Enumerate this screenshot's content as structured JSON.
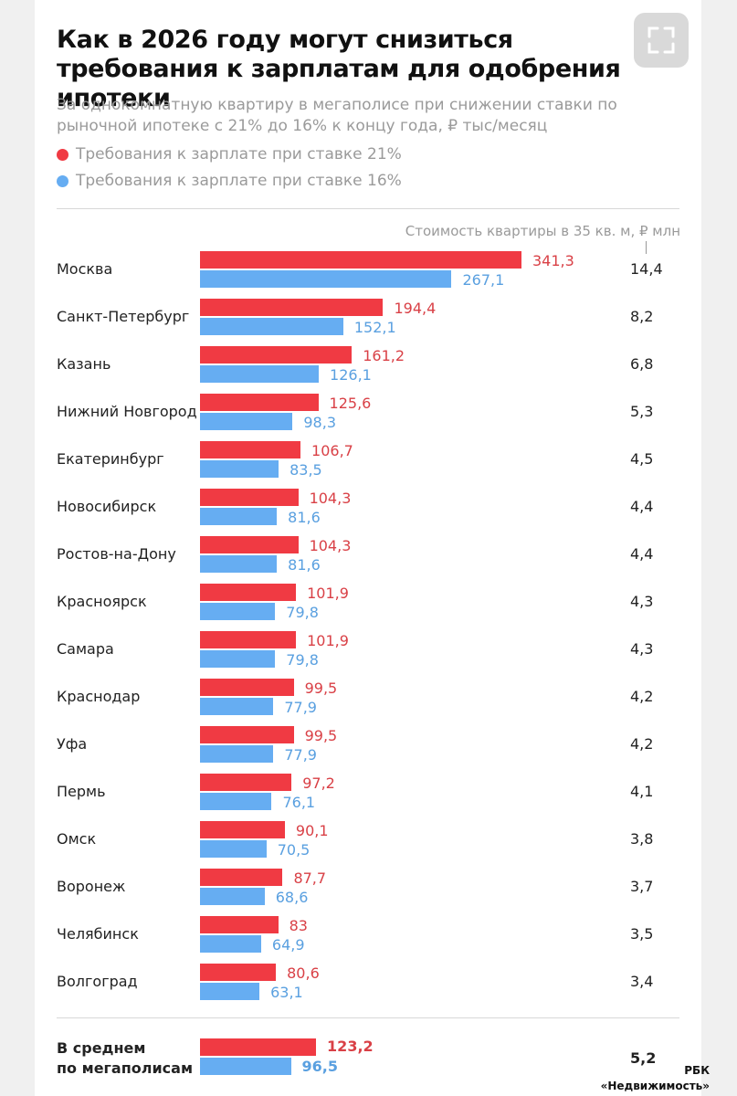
{
  "header": {
    "title": "Как в 2026 году могут снизиться требования к зарплатам для одобрения ипотеки",
    "subtitle": "За однокомнатную квартиру в мегаполисе при снижении ставки по рыночной ипотеке с 21% до 16% к концу года, ₽ тыс/месяц"
  },
  "legend": {
    "series_21": "Требования к зарплате при ставке 21%",
    "series_16": "Требования к зарплате при ставке 16%"
  },
  "colors": {
    "red": "#f03a43",
    "blue": "#66adf2",
    "red_text": "#d94046",
    "blue_text": "#5aa0e0"
  },
  "chart_data": {
    "type": "bar",
    "orientation": "horizontal",
    "categories": [
      "Москва",
      "Санкт-Петербург",
      "Казань",
      "Нижний Новгород",
      "Екатеринбург",
      "Новосибирск",
      "Ростов-на-Дону",
      "Красноярск",
      "Самара",
      "Краснодар",
      "Уфа",
      "Пермь",
      "Омск",
      "Воронеж",
      "Челябинск",
      "Волгоград"
    ],
    "series": [
      {
        "name": "Требования к зарплате при ставке 21%",
        "values": [
          341.3,
          194.4,
          161.2,
          125.6,
          106.7,
          104.3,
          104.3,
          101.9,
          101.9,
          99.5,
          99.5,
          97.2,
          90.1,
          87.7,
          83,
          80.6
        ],
        "labels": [
          "341,3",
          "194,4",
          "161,2",
          "125,6",
          "106,7",
          "104,3",
          "104,3",
          "101,9",
          "101,9",
          "99,5",
          "99,5",
          "97,2",
          "90,1",
          "87,7",
          "83",
          "80,6"
        ]
      },
      {
        "name": "Требования к зарплате при ставке 16%",
        "values": [
          267.1,
          152.1,
          126.1,
          98.3,
          83.5,
          81.6,
          81.6,
          79.8,
          79.8,
          77.9,
          77.9,
          76.1,
          70.5,
          68.6,
          64.9,
          63.1
        ],
        "labels": [
          "267,1",
          "152,1",
          "126,1",
          "98,3",
          "83,5",
          "81,6",
          "81,6",
          "79,8",
          "79,8",
          "77,9",
          "77,9",
          "76,1",
          "70,5",
          "68,6",
          "64,9",
          "63,1"
        ]
      }
    ],
    "apartment_cost": {
      "title": "Стоимость квартиры в 35 кв. м, ₽ млн",
      "values": [
        14.4,
        8.2,
        6.8,
        5.3,
        4.5,
        4.4,
        4.4,
        4.3,
        4.3,
        4.2,
        4.2,
        4.1,
        3.8,
        3.7,
        3.5,
        3.4
      ],
      "labels": [
        "14,4",
        "8,2",
        "6,8",
        "5,3",
        "4,5",
        "4,4",
        "4,4",
        "4,3",
        "4,3",
        "4,2",
        "4,2",
        "4,1",
        "3,8",
        "3,7",
        "3,5",
        "3,4"
      ]
    },
    "average": {
      "label_line1": "В среднем",
      "label_line2": "по мегаполисам",
      "value_21": 123.2,
      "label_21": "123,2",
      "value_16": 96.5,
      "label_16": "96,5",
      "cost": 5.2,
      "cost_label": "5,2"
    },
    "xlim": [
      0,
      341.3
    ],
    "grid": false
  },
  "source": {
    "line1": "РБК",
    "line2": "«Недвижимость»"
  }
}
